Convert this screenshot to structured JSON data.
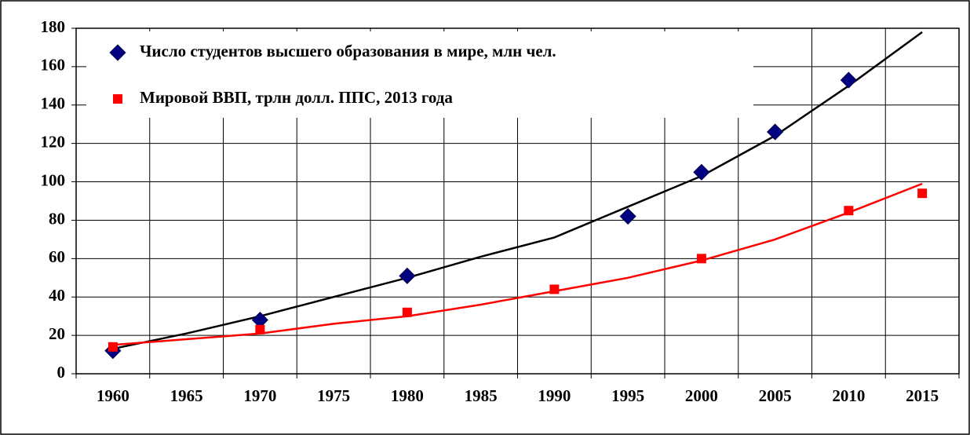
{
  "chart_data": {
    "type": "scatter",
    "xlim": [
      1957.5,
      2017.5
    ],
    "xticks": [
      1960,
      1965,
      1970,
      1975,
      1980,
      1985,
      1990,
      1995,
      2000,
      2005,
      2010,
      2015
    ],
    "ylim": [
      0,
      180
    ],
    "yticks": [
      0,
      20,
      40,
      60,
      80,
      100,
      120,
      140,
      160,
      180
    ],
    "grid": true,
    "legend": "top-left",
    "series": [
      {
        "name": "Число студентов высшего образования в мире, млн чел.",
        "color": "#000080",
        "marker": "diamond",
        "x": [
          1960,
          1970,
          1980,
          1995,
          2000,
          2005,
          2010
        ],
        "values": [
          12,
          28,
          51,
          82,
          105,
          126,
          153
        ],
        "trend_color": "#000000",
        "trend_x": [
          1960,
          1965,
          1970,
          1975,
          1980,
          1985,
          1990,
          1995,
          2000,
          2005,
          2010,
          2015
        ],
        "trend": [
          13,
          21,
          30,
          40,
          50,
          61,
          71,
          87,
          103,
          124,
          150,
          178
        ]
      },
      {
        "name": "Мировой ВВП, трлн долл. ППС, 2013 года",
        "color": "#ff0000",
        "marker": "square",
        "x": [
          1960,
          1970,
          1980,
          1990,
          2000,
          2010,
          2015
        ],
        "values": [
          14,
          23,
          32,
          44,
          60,
          85,
          94
        ],
        "trend_color": "#ff0000",
        "trend_x": [
          1960,
          1965,
          1970,
          1975,
          1980,
          1985,
          1990,
          1995,
          2000,
          2005,
          2010,
          2015
        ],
        "trend": [
          15,
          18,
          21,
          26,
          30,
          36,
          43,
          50,
          59,
          70,
          84,
          99
        ]
      }
    ]
  }
}
